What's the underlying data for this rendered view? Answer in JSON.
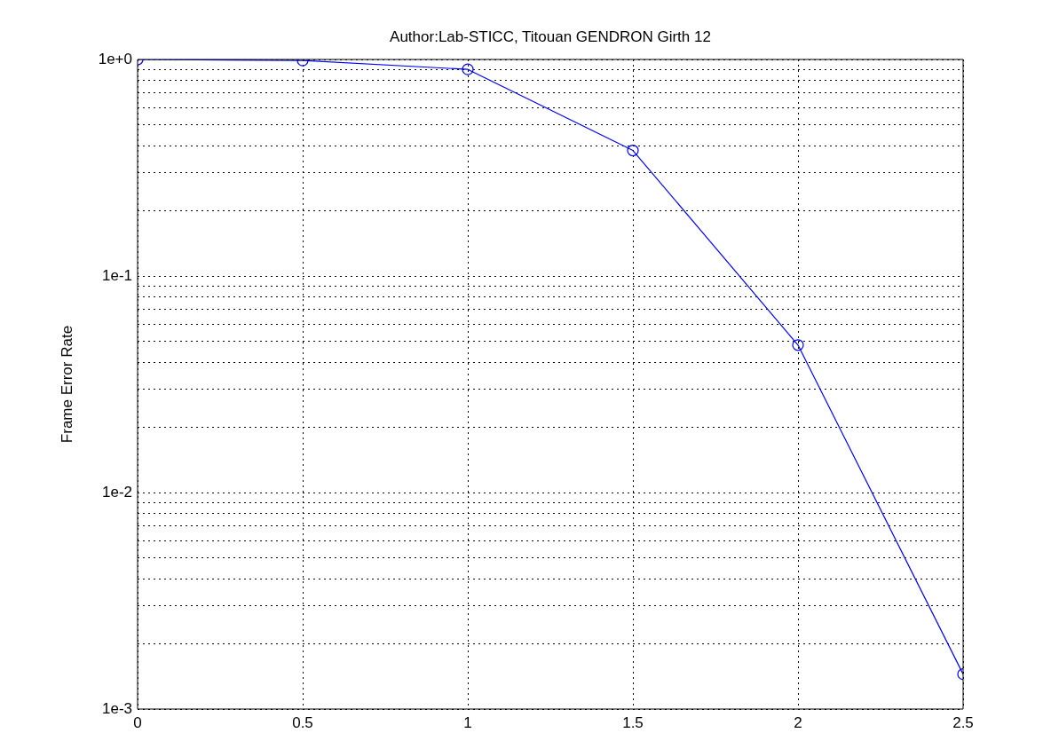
{
  "chart_data": {
    "type": "line",
    "title": "Author:Lab-STICC, Titouan GENDRON Girth 12",
    "ylabel": "Frame Error Rate",
    "x": [
      0,
      0.5,
      1,
      1.5,
      2,
      2.5
    ],
    "series": [
      {
        "color": "#0000ff",
        "values": [
          1.0,
          0.99,
          0.9,
          0.38,
          0.048,
          0.00145
        ]
      }
    ],
    "xlim": [
      0,
      2.5
    ],
    "xticks": [
      0,
      0.5,
      1,
      1.5,
      2,
      2.5
    ],
    "ylim": [
      0.001,
      1
    ],
    "log": "y",
    "yticks": [
      {
        "value": 0.001,
        "label": "1e-3"
      },
      {
        "value": 0.002,
        "label": null
      },
      {
        "value": 0.003,
        "label": null
      },
      {
        "value": 0.004,
        "label": null
      },
      {
        "value": 0.005,
        "label": null
      },
      {
        "value": 0.006,
        "label": null
      },
      {
        "value": 0.007,
        "label": null
      },
      {
        "value": 0.008,
        "label": null
      },
      {
        "value": 0.009,
        "label": null
      },
      {
        "value": 0.01,
        "label": "1e-2"
      },
      {
        "value": 0.02,
        "label": null
      },
      {
        "value": 0.03,
        "label": null
      },
      {
        "value": 0.04,
        "label": null
      },
      {
        "value": 0.05,
        "label": null
      },
      {
        "value": 0.06,
        "label": null
      },
      {
        "value": 0.07,
        "label": null
      },
      {
        "value": 0.08,
        "label": null
      },
      {
        "value": 0.09,
        "label": null
      },
      {
        "value": 0.1,
        "label": "1e-1"
      },
      {
        "value": 0.2,
        "label": null
      },
      {
        "value": 0.3,
        "label": null
      },
      {
        "value": 0.4,
        "label": null
      },
      {
        "value": 0.5,
        "label": null
      },
      {
        "value": 0.6,
        "label": null
      },
      {
        "value": 0.7,
        "label": null
      },
      {
        "value": 0.8,
        "label": null
      },
      {
        "value": 0.9,
        "label": null
      },
      {
        "value": 1,
        "label": "1e+0"
      }
    ],
    "grid": true,
    "marker": "circle",
    "line_style": "solid",
    "legend": false
  }
}
